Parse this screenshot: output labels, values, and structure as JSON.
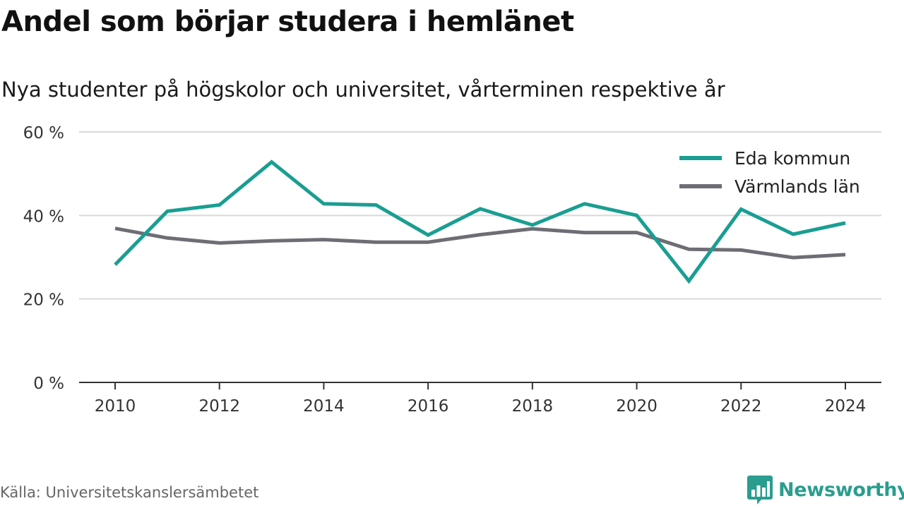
{
  "title": "Andel som börjar studera i hemlänet",
  "subtitle": "Nya studenter på högskolor och universitet, vårterminen respektive år",
  "source": "Källa: Universitetskanslersämbetet",
  "brand": "Newsworthy",
  "colors": {
    "eda": "#1a9e92",
    "varmland": "#6e6d75",
    "grid": "#d9d9d9",
    "axis": "#333333",
    "brand": "#2a9d8f"
  },
  "chart_data": {
    "type": "line",
    "x": [
      2010,
      2011,
      2012,
      2013,
      2014,
      2015,
      2016,
      2017,
      2018,
      2019,
      2020,
      2021,
      2022,
      2023,
      2024
    ],
    "xticks": [
      "2010",
      "2012",
      "2014",
      "2016",
      "2018",
      "2020",
      "2022",
      "2024"
    ],
    "yticks": [
      "0 %",
      "20 %",
      "40 %",
      "60 %"
    ],
    "ylim": [
      0,
      60
    ],
    "grid": true,
    "legend_position": "top-right",
    "series": [
      {
        "name": "Eda kommun",
        "color": "#1a9e92",
        "values": [
          28.2,
          41.0,
          42.5,
          52.8,
          42.8,
          42.5,
          35.3,
          41.6,
          37.7,
          42.8,
          40.0,
          24.3,
          41.5,
          35.5,
          38.2
        ]
      },
      {
        "name": "Värmlands län",
        "color": "#6e6d75",
        "values": [
          36.9,
          34.6,
          33.4,
          33.9,
          34.2,
          33.6,
          33.6,
          35.4,
          36.8,
          35.9,
          35.9,
          31.9,
          31.7,
          29.9,
          30.6
        ]
      }
    ]
  }
}
